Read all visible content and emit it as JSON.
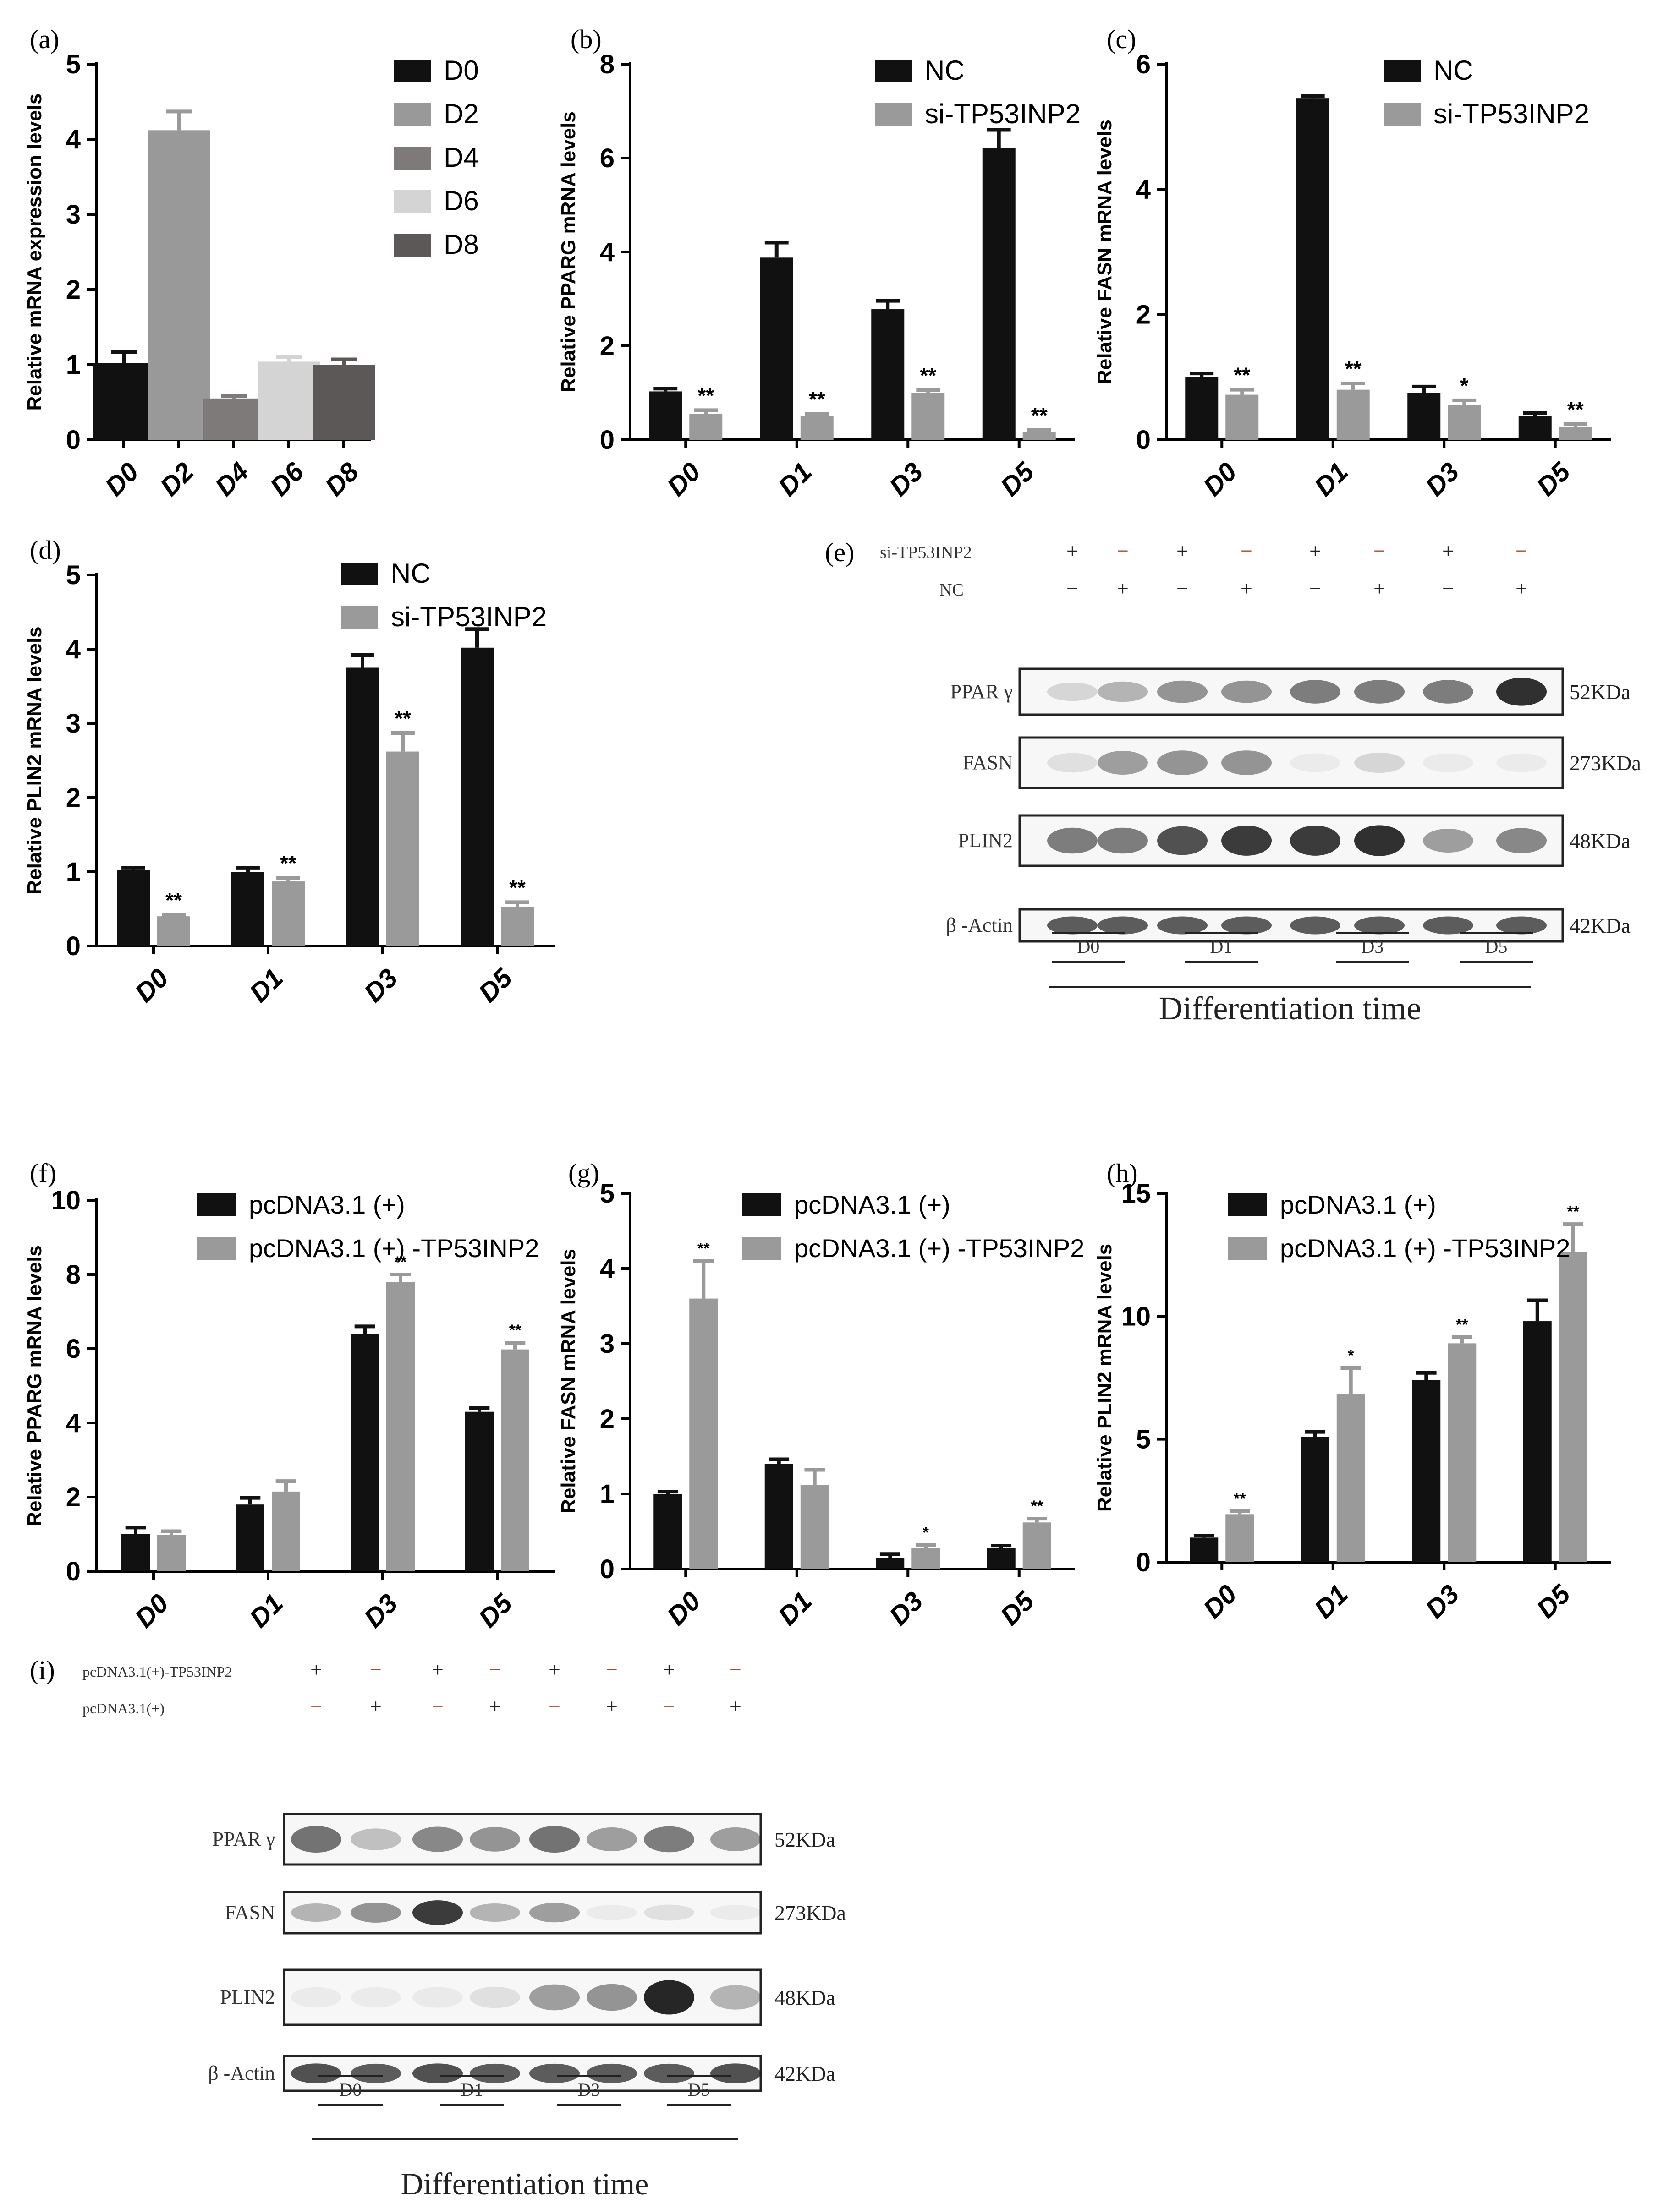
{
  "chart_data": [
    {
      "panel": "(a)",
      "type": "bar",
      "categories": [
        "D0",
        "D2",
        "D4",
        "D6",
        "D8"
      ],
      "series": [
        {
          "name": "expression",
          "values": [
            1.02,
            4.12,
            0.55,
            1.04,
            1.0
          ],
          "errors": [
            0.15,
            0.25,
            0.03,
            0.06,
            0.07
          ]
        }
      ],
      "bar_colors": [
        "#111111",
        "#999999",
        "#7f7a7a",
        "#d4d4d4",
        "#5c5858"
      ],
      "legend": [
        "D0",
        "D2",
        "D4",
        "D6",
        "D8"
      ],
      "ylabel": "Relative mRNA expression levels",
      "ylim": [
        0,
        5
      ],
      "yticks": [
        "0",
        "1",
        "2",
        "3",
        "4",
        "5"
      ],
      "significance": []
    },
    {
      "panel": "(b)",
      "type": "bar",
      "categories": [
        "D0",
        "D1",
        "D3",
        "D5"
      ],
      "series": [
        {
          "name": "NC",
          "values": [
            1.03,
            3.88,
            2.78,
            6.22
          ],
          "errors": [
            0.06,
            0.32,
            0.18,
            0.38
          ]
        },
        {
          "name": "si-TP53INP2",
          "values": [
            0.55,
            0.5,
            1.0,
            0.17
          ],
          "errors": [
            0.08,
            0.05,
            0.06,
            0.04
          ]
        }
      ],
      "ylabel": "Relative PPARG mRNA levels",
      "ylim": [
        0,
        8
      ],
      "yticks": [
        "0",
        "2",
        "4",
        "6",
        "8"
      ],
      "significance": [
        "**",
        "**",
        "**",
        "**"
      ]
    },
    {
      "panel": "(c)",
      "type": "bar",
      "categories": [
        "D0",
        "D1",
        "D3",
        "D5"
      ],
      "series": [
        {
          "name": "NC",
          "values": [
            1.0,
            5.45,
            0.75,
            0.38
          ],
          "errors": [
            0.06,
            0.04,
            0.1,
            0.05
          ]
        },
        {
          "name": "si-TP53INP2",
          "values": [
            0.72,
            0.8,
            0.55,
            0.2
          ],
          "errors": [
            0.08,
            0.1,
            0.08,
            0.05
          ]
        }
      ],
      "ylabel": "Relative FASN mRNA levels",
      "ylim": [
        0,
        6
      ],
      "yticks": [
        "0",
        "2",
        "4",
        "6"
      ],
      "significance": [
        "**",
        "**",
        "*",
        "**"
      ]
    },
    {
      "panel": "(d)",
      "type": "bar",
      "categories": [
        "D0",
        "D1",
        "D3",
        "D5"
      ],
      "series": [
        {
          "name": "NC",
          "values": [
            1.02,
            1.0,
            3.75,
            4.02
          ],
          "errors": [
            0.03,
            0.05,
            0.17,
            0.25
          ]
        },
        {
          "name": "si-TP53INP2",
          "values": [
            0.4,
            0.87,
            2.62,
            0.53
          ],
          "errors": [
            0.02,
            0.05,
            0.25,
            0.06
          ]
        }
      ],
      "legend_names": [
        "NC",
        "si-TP53INP2"
      ],
      "ylabel": "Relative PLIN2 mRNA levels",
      "ylim": [
        0,
        5
      ],
      "yticks": [
        "0",
        "1",
        "2",
        "3",
        "4",
        "5"
      ],
      "significance": [
        "**",
        "**",
        "**",
        "**"
      ]
    },
    {
      "panel": "(f)",
      "type": "bar",
      "categories": [
        "D0",
        "D1",
        "D3",
        "D5"
      ],
      "series": [
        {
          "name": "pcDNA3.1 (+)",
          "values": [
            1.0,
            1.8,
            6.4,
            4.3
          ],
          "errors": [
            0.18,
            0.18,
            0.2,
            0.1
          ]
        },
        {
          "name": "pcDNA3.1 (+) -TP53INP2",
          "values": [
            0.98,
            2.15,
            7.8,
            5.98
          ],
          "errors": [
            0.1,
            0.28,
            0.2,
            0.18
          ]
        }
      ],
      "ylabel": "Relative PPARG mRNA levels",
      "ylim": [
        0,
        10
      ],
      "yticks": [
        "0",
        "2",
        "4",
        "6",
        "8",
        "10"
      ],
      "significance": [
        "",
        "",
        "**",
        "**"
      ]
    },
    {
      "panel": "(g)",
      "type": "bar",
      "categories": [
        "D0",
        "D1",
        "D3",
        "D5"
      ],
      "series": [
        {
          "name": "pcDNA3.1 (+)",
          "values": [
            1.0,
            1.4,
            0.15,
            0.28
          ],
          "errors": [
            0.03,
            0.06,
            0.05,
            0.03
          ]
        },
        {
          "name": "pcDNA3.1 (+) -TP53INP2",
          "values": [
            3.6,
            1.12,
            0.28,
            0.62
          ],
          "errors": [
            0.5,
            0.2,
            0.04,
            0.05
          ]
        }
      ],
      "ylabel": "Relative FASN mRNA levels",
      "ylim": [
        0,
        5
      ],
      "yticks": [
        "0",
        "1",
        "2",
        "3",
        "4",
        "5"
      ],
      "significance": [
        "**",
        "",
        "*",
        "**"
      ]
    },
    {
      "panel": "(h)",
      "type": "bar",
      "categories": [
        "D0",
        "D1",
        "D3",
        "D5"
      ],
      "series": [
        {
          "name": "pcDNA3.1 (+)",
          "values": [
            1.0,
            5.1,
            7.4,
            9.8
          ],
          "errors": [
            0.08,
            0.2,
            0.3,
            0.85
          ]
        },
        {
          "name": "pcDNA3.1 (+) -TP53INP2",
          "values": [
            1.95,
            6.85,
            8.9,
            12.6
          ],
          "errors": [
            0.12,
            1.05,
            0.25,
            1.15
          ]
        }
      ],
      "ylabel": "Relative PLIN2 mRNA levels",
      "ylim": [
        0,
        15
      ],
      "yticks": [
        "0",
        "5",
        "10",
        "15"
      ],
      "significance": [
        "**",
        "*",
        "**",
        "**"
      ]
    }
  ],
  "blots": [
    {
      "panel": "(e)",
      "row_labels": [
        "si-TP53INP2",
        "NC"
      ],
      "row_signs": [
        [
          "+",
          "−",
          "+",
          "−",
          "+",
          "−",
          "+",
          "−"
        ],
        [
          "−",
          "+",
          "−",
          "+",
          "−",
          "+",
          "−",
          "+"
        ]
      ],
      "bands": [
        {
          "label": "PPAR γ",
          "kda": "52KDa",
          "intensity": [
            0.15,
            0.3,
            0.45,
            0.45,
            0.55,
            0.55,
            0.55,
            0.9
          ]
        },
        {
          "label": "FASN",
          "kda": "273KDa",
          "intensity": [
            0.1,
            0.4,
            0.45,
            0.45,
            0.04,
            0.15,
            0.04,
            0.04
          ]
        },
        {
          "label": "PLIN2",
          "kda": "48KDa",
          "intensity": [
            0.55,
            0.55,
            0.75,
            0.85,
            0.85,
            0.9,
            0.4,
            0.5
          ]
        },
        {
          "label": "β -Actin",
          "kda": "42KDa",
          "intensity": [
            0.7,
            0.7,
            0.7,
            0.7,
            0.7,
            0.7,
            0.7,
            0.7
          ]
        }
      ],
      "groups": [
        "D0",
        "D1",
        "D3",
        "D5"
      ],
      "xlabel": "Differentiation time"
    },
    {
      "panel": "(i)",
      "row_labels": [
        "pcDNA3.1(+)-TP53INP2",
        "pcDNA3.1(+)"
      ],
      "row_signs": [
        [
          "+",
          "−",
          "+",
          "−",
          "+",
          "−",
          "+",
          "−"
        ],
        [
          "−",
          "+",
          "−",
          "+",
          "−",
          "+",
          "−",
          "+"
        ]
      ],
      "bands": [
        {
          "label": "PPAR γ",
          "kda": "52KDa",
          "intensity": [
            0.6,
            0.25,
            0.5,
            0.45,
            0.6,
            0.4,
            0.55,
            0.4
          ]
        },
        {
          "label": "FASN",
          "kda": "273KDa",
          "intensity": [
            0.3,
            0.45,
            0.85,
            0.3,
            0.4,
            0.05,
            0.1,
            0.05
          ]
        },
        {
          "label": "PLIN2",
          "kda": "48KDa",
          "intensity": [
            0.04,
            0.04,
            0.06,
            0.1,
            0.4,
            0.45,
            0.95,
            0.3
          ]
        },
        {
          "label": "β -Actin",
          "kda": "42KDa",
          "intensity": [
            0.75,
            0.7,
            0.75,
            0.7,
            0.7,
            0.7,
            0.7,
            0.75
          ]
        }
      ],
      "groups": [
        "D0",
        "D1",
        "D3",
        "D5"
      ],
      "xlabel": "Differentiation time"
    }
  ],
  "colors": {
    "dark": "#111111",
    "gray": "#9a9a9a",
    "axis": "#000000"
  }
}
